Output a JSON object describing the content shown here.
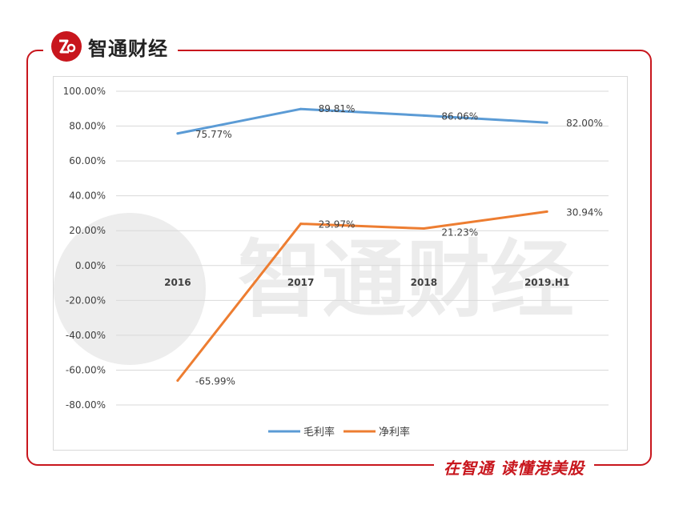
{
  "brand": {
    "name": "智通财经",
    "slogan": "在智通 读懂港美股"
  },
  "colors": {
    "brand_red": "#c8161d",
    "series_gross": "#5b9bd5",
    "series_net": "#ed7d31",
    "grid": "#d9d9d9",
    "text": "#404040"
  },
  "chart_data": {
    "type": "line",
    "categories": [
      "2016",
      "2017",
      "2018",
      "2019.H1"
    ],
    "series": [
      {
        "name": "毛利率",
        "values": [
          75.77,
          89.81,
          86.06,
          82.0
        ],
        "labels": [
          "75.77%",
          "89.81%",
          "86.06%",
          "82.00%"
        ],
        "color": "#5b9bd5"
      },
      {
        "name": "净利率",
        "values": [
          -65.99,
          23.97,
          21.23,
          30.94
        ],
        "labels": [
          "-65.99%",
          "23.97%",
          "21.23%",
          "30.94%"
        ],
        "color": "#ed7d31"
      }
    ],
    "ylim": [
      -80,
      100
    ],
    "yticks": [
      100,
      80,
      60,
      40,
      20,
      0,
      -20,
      -40,
      -60,
      -80
    ],
    "ytick_labels": [
      "100.00%",
      "80.00%",
      "60.00%",
      "40.00%",
      "20.00%",
      "0.00%",
      "-20.00%",
      "-40.00%",
      "-60.00%",
      "-80.00%"
    ],
    "grid": true,
    "legend": "bottom-center"
  }
}
